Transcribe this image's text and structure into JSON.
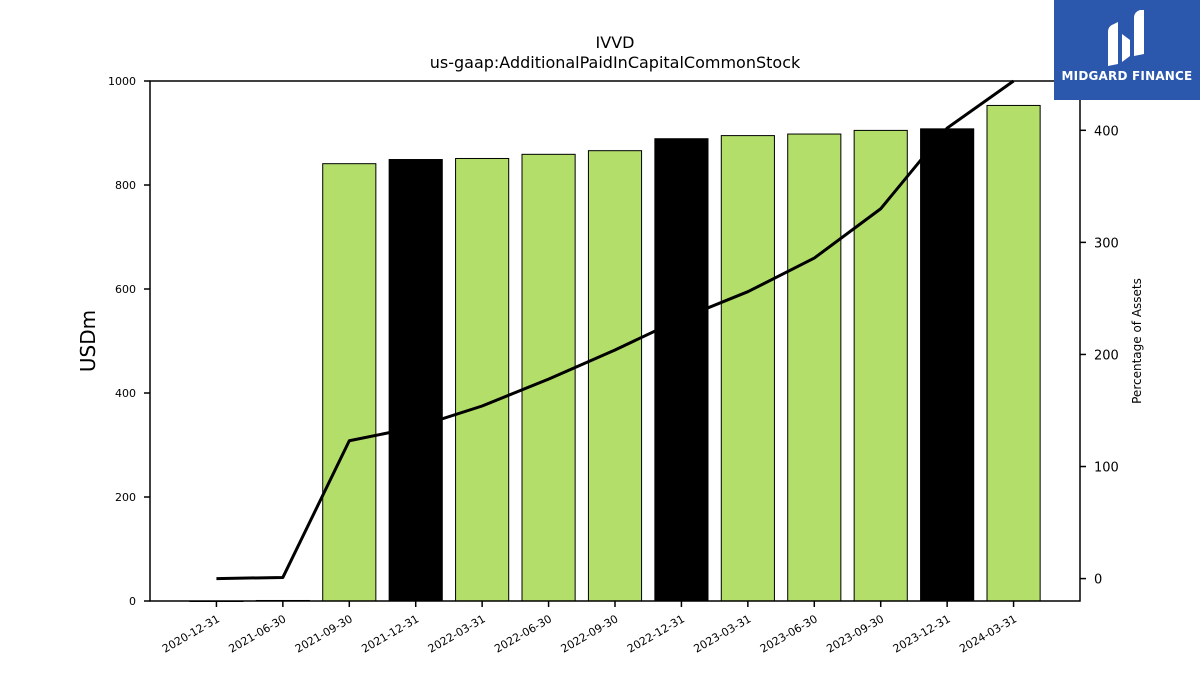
{
  "chart_data": {
    "type": "bar",
    "title": "IVVD",
    "subtitle": "us-gaap:AdditionalPaidInCapitalCommonStock",
    "ylabel": "USDm",
    "y2label": "Percentage of Assets",
    "ylim": [
      0,
      1000
    ],
    "y2lim": [
      -20,
      444
    ],
    "yticks": [
      0,
      200,
      400,
      600,
      800,
      1000
    ],
    "y2ticks": [
      0,
      100,
      200,
      300,
      400
    ],
    "grid": false,
    "categories": [
      "2020-12-31",
      "2021-06-30",
      "2021-09-30",
      "2021-12-31",
      "2022-03-31",
      "2022-06-30",
      "2022-09-30",
      "2022-12-31",
      "2023-03-31",
      "2023-06-30",
      "2023-09-30",
      "2023-12-31",
      "2024-03-31"
    ],
    "series": [
      {
        "kind": "bar",
        "axis": "left",
        "values": [
          0,
          1,
          841,
          849,
          851,
          859,
          866,
          889,
          895,
          898,
          905,
          908,
          953
        ],
        "colors": [
          "#b3de69",
          "#b3de69",
          "#b3de69",
          "#000000",
          "#b3de69",
          "#b3de69",
          "#b3de69",
          "#000000",
          "#b3de69",
          "#b3de69",
          "#b3de69",
          "#000000",
          "#b3de69"
        ]
      },
      {
        "kind": "line",
        "axis": "right",
        "color": "#000000",
        "values": [
          0,
          1,
          123,
          135,
          154,
          178,
          204,
          232,
          256,
          286,
          330,
          402,
          444
        ]
      }
    ]
  },
  "logo": {
    "text": "MIDGARD FINANCE",
    "background": "#2b58ad"
  }
}
